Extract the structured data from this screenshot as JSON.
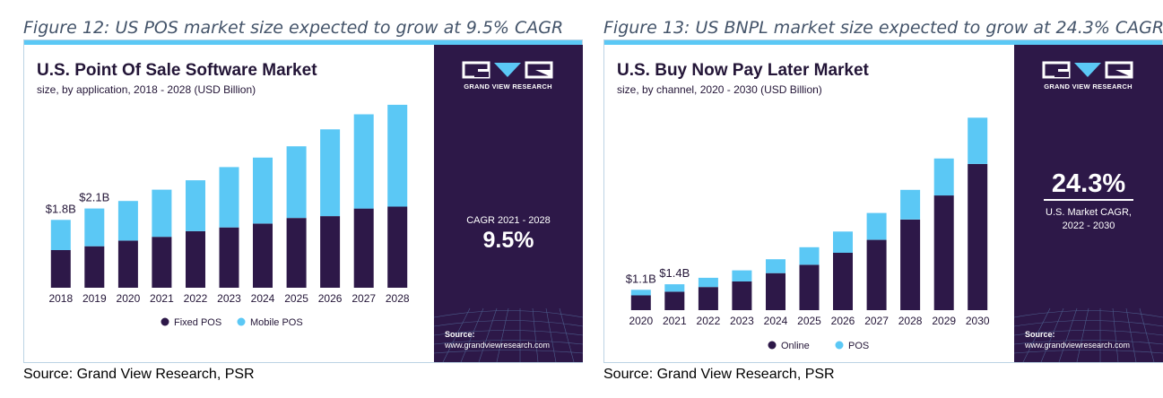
{
  "figures": [
    {
      "caption": "Figure 12: US POS market size expected to grow at 9.5% CAGR",
      "source_note": "Source: Grand View Research, PSR",
      "brand": "GRAND VIEW RESEARCH",
      "side": {
        "line1": "CAGR 2021 - 2028",
        "line2": "9.5%",
        "line3": "",
        "line4": "",
        "source_label": "Source:",
        "source_url": "www.grandviewresearch.com"
      }
    },
    {
      "caption": "Figure 13: US BNPL market size expected to grow at 24.3% CAGR",
      "source_note": "Source: Grand View Research, PSR",
      "brand": "GRAND VIEW RESEARCH",
      "side": {
        "line1": "24.3%",
        "line2": "U.S. Market CAGR,",
        "line3": "2022 - 2030",
        "source_label": "Source:",
        "source_url": "www.grandviewresearch.com"
      }
    }
  ],
  "colors": {
    "dark": "#2d1848",
    "light": "#5bc8f5",
    "topbar": "#5bc8f5"
  },
  "chart_data": [
    {
      "type": "bar",
      "stacked": true,
      "title": "U.S. Point Of Sale Software Market",
      "subtitle": "size, by application, 2018 - 2028 (USD Billion)",
      "categories": [
        "2018",
        "2019",
        "2020",
        "2021",
        "2022",
        "2023",
        "2024",
        "2025",
        "2026",
        "2027",
        "2028"
      ],
      "series": [
        {
          "name": "Fixed POS",
          "values": [
            1.0,
            1.1,
            1.25,
            1.35,
            1.5,
            1.6,
            1.7,
            1.85,
            1.9,
            2.1,
            2.15
          ]
        },
        {
          "name": "Mobile POS",
          "values": [
            0.8,
            1.0,
            1.05,
            1.25,
            1.35,
            1.6,
            1.75,
            1.9,
            2.3,
            2.5,
            2.7
          ]
        }
      ],
      "data_labels": [
        {
          "category": "2018",
          "text": "$1.8B"
        },
        {
          "category": "2019",
          "text": "$2.1B"
        }
      ],
      "ylim": [
        0,
        5.3
      ],
      "legend_position": "bottom"
    },
    {
      "type": "bar",
      "stacked": true,
      "title": "U.S. Buy Now Pay Later Market",
      "subtitle": "size, by channel, 2020 - 2030 (USD Billion)",
      "categories": [
        "2020",
        "2021",
        "2022",
        "2023",
        "2024",
        "2025",
        "2026",
        "2027",
        "2028",
        "2029",
        "2030"
      ],
      "series": [
        {
          "name": "Online",
          "values": [
            0.8,
            1.0,
            1.25,
            1.55,
            2.0,
            2.45,
            3.1,
            3.8,
            4.9,
            6.2,
            7.9
          ]
        },
        {
          "name": "POS",
          "values": [
            0.3,
            0.4,
            0.5,
            0.6,
            0.75,
            0.95,
            1.15,
            1.45,
            1.6,
            2.0,
            2.5
          ]
        }
      ],
      "data_labels": [
        {
          "category": "2020",
          "text": "$1.1B"
        },
        {
          "category": "2021",
          "text": "$1.4B"
        }
      ],
      "ylim": [
        0,
        12.5
      ],
      "legend_position": "bottom"
    }
  ]
}
